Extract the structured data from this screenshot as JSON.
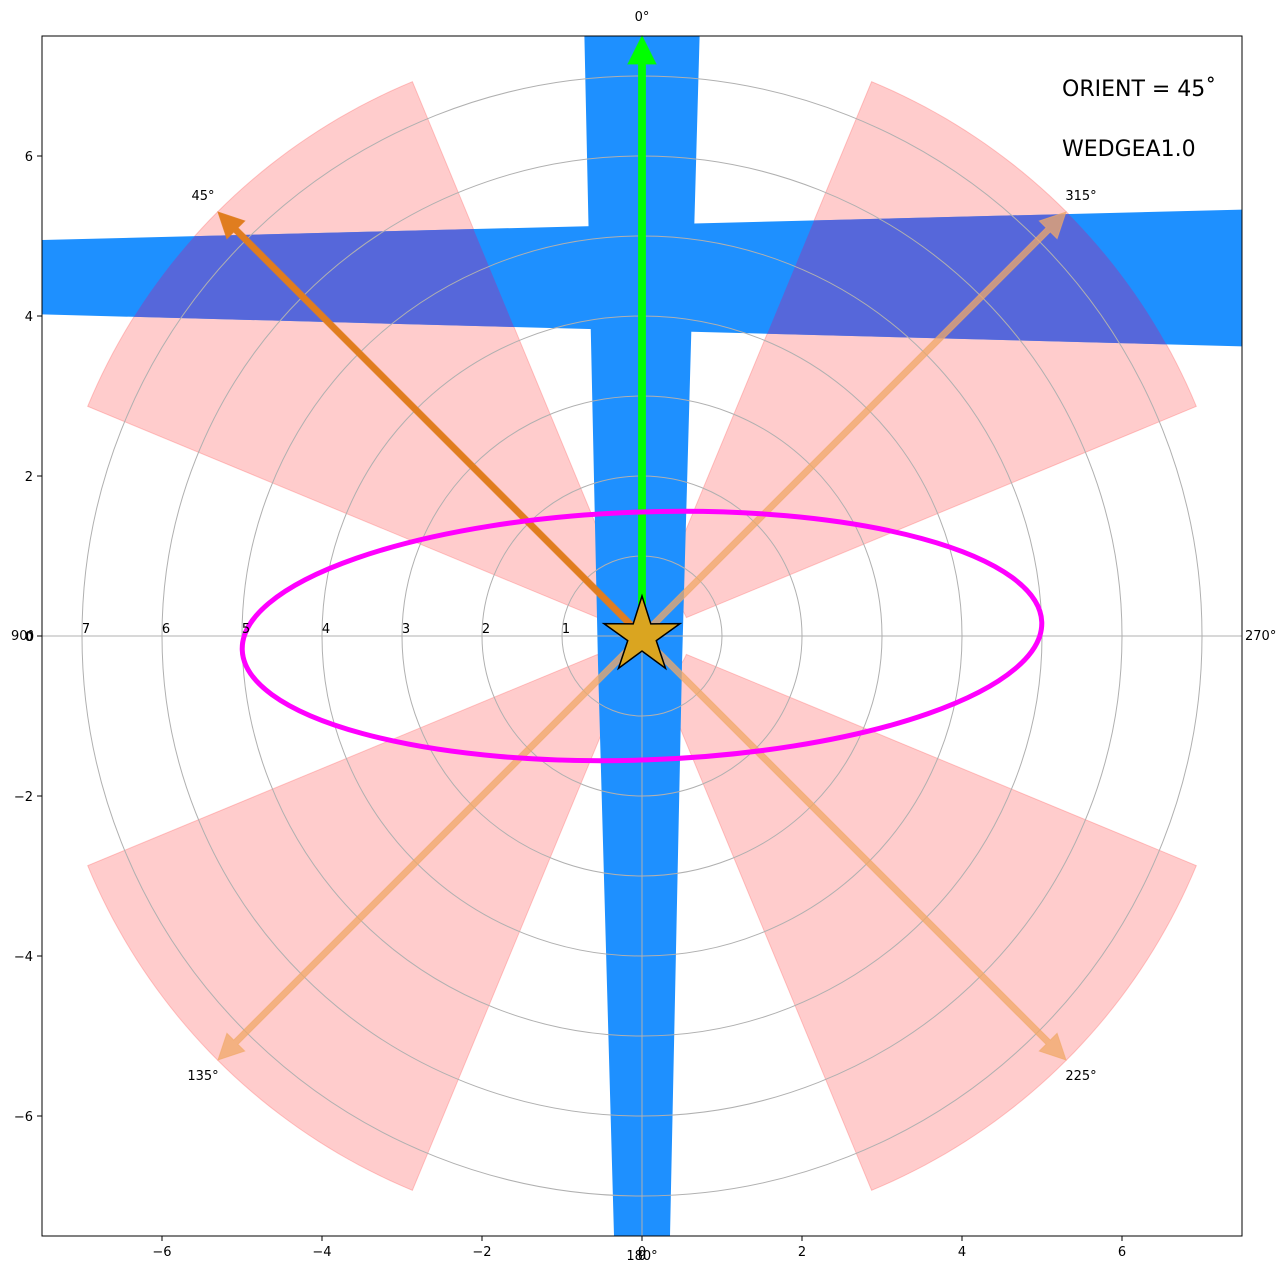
{
  "chart_data": {
    "type": "scatter",
    "xlim": [
      -7.5,
      7.5
    ],
    "ylim": [
      -7.5,
      7.5
    ],
    "xticks": [
      -6,
      -4,
      -2,
      0,
      2,
      4,
      6
    ],
    "yticks": [
      -6,
      -4,
      -2,
      0,
      2,
      4,
      6
    ],
    "xtick_labels": [
      "−6",
      "−4",
      "−2",
      "0",
      "2",
      "4",
      "6"
    ],
    "ytick_labels": [
      "−6",
      "−4",
      "−2",
      "0",
      "2",
      "4",
      "6"
    ],
    "rings": [
      1,
      2,
      3,
      4,
      5,
      6,
      7
    ],
    "ring_labels": [
      "1",
      "2",
      "3",
      "4",
      "5",
      "6",
      "7"
    ],
    "center_label": "0",
    "compass_labels": [
      {
        "text": "0°",
        "pos": "top"
      },
      {
        "text": "90°",
        "pos": "left"
      },
      {
        "text": "180°",
        "pos": "bottom"
      },
      {
        "text": "270°",
        "pos": "right"
      }
    ],
    "wedges": [
      {
        "center_deg": 45,
        "half_width_deg": 22.5,
        "r0": 0.6,
        "r1": 7.5
      },
      {
        "center_deg": 135,
        "half_width_deg": 22.5,
        "r0": 0.6,
        "r1": 7.5
      },
      {
        "center_deg": 225,
        "half_width_deg": 22.5,
        "r0": 0.6,
        "r1": 7.5
      },
      {
        "center_deg": 315,
        "half_width_deg": 22.5,
        "r0": 0.6,
        "r1": 7.5
      }
    ],
    "arrows": [
      {
        "label": "45°",
        "tip": [
          -5.3,
          5.3
        ],
        "color": "#e07d1f",
        "alpha": 1.0
      },
      {
        "label": "315°",
        "tip": [
          5.3,
          5.3
        ],
        "color": "#f0a868",
        "alpha": 0.75
      },
      {
        "label": "135°",
        "tip": [
          -5.3,
          -5.3
        ],
        "color": "#f0a868",
        "alpha": 0.75
      },
      {
        "label": "225°",
        "tip": [
          5.3,
          -5.3
        ],
        "color": "#f0a868",
        "alpha": 0.75
      }
    ],
    "vertical_arrow": {
      "tip": [
        0,
        7.5
      ],
      "color": "#00ff00"
    },
    "ellipse": {
      "cx": 0,
      "cy": 0,
      "a": 5,
      "b": 1.55,
      "angle_deg": 2,
      "color": "#ff00ff"
    },
    "star": {
      "x": 0,
      "y": 0,
      "color": "#daa520"
    },
    "annotations": [
      "ORIENT = 45$^{\\circ}$",
      "WEDGEA1.0"
    ],
    "annotation_display": [
      "ORIENT = 45˚",
      "WEDGEA1.0"
    ]
  }
}
